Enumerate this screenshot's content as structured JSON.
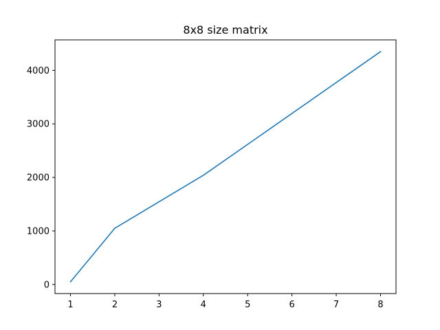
{
  "chart_data": {
    "type": "line",
    "title": "8x8 size matrix",
    "xlabel": "",
    "ylabel": "",
    "x": [
      1,
      2,
      4,
      8
    ],
    "series": [
      {
        "values": [
          50,
          1050,
          2040,
          4350
        ],
        "color": "#1f77b4"
      }
    ],
    "xlim": [
      0.65,
      8.35
    ],
    "ylim": [
      -170,
      4570
    ],
    "xticks": [
      1,
      2,
      3,
      4,
      5,
      6,
      7,
      8
    ],
    "yticks": [
      0,
      1000,
      2000,
      3000,
      4000
    ],
    "grid": false,
    "legend": "none"
  }
}
